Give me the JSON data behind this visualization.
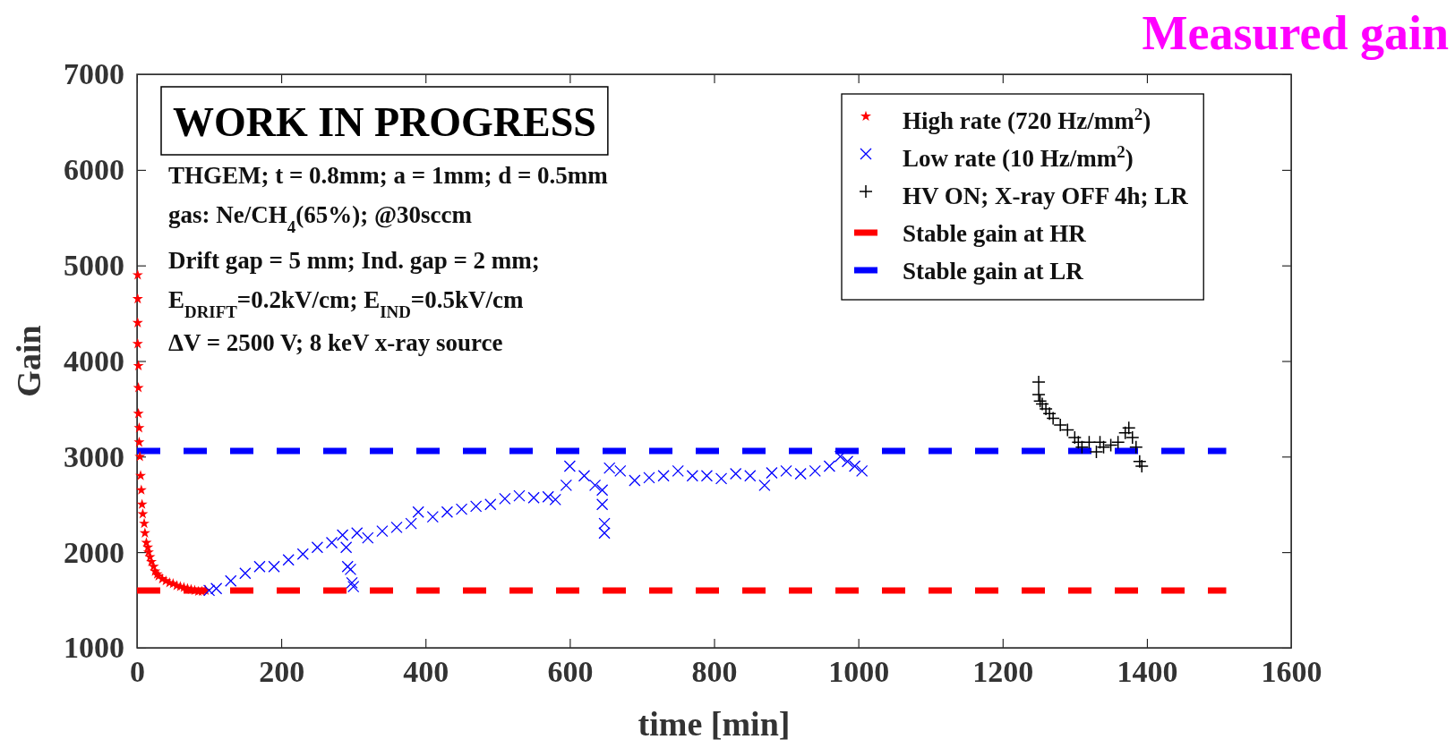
{
  "chart_data": {
    "type": "scatter",
    "title": "Measured gain",
    "xlabel": "time [min]",
    "ylabel": "Gain",
    "xlim": [
      0,
      1600
    ],
    "xticks": [
      0,
      200,
      400,
      600,
      800,
      1000,
      1200,
      1400,
      1600
    ],
    "ylim": [
      1000,
      7000
    ],
    "yticks": [
      1000,
      2000,
      3000,
      4000,
      5000,
      6000,
      7000
    ],
    "grid": false,
    "legend": "top right",
    "annotations": [
      "WORK IN PROGRESS",
      "THGEM; t = 0.8mm; a = 1mm; d = 0.5mm",
      "gas: Ne/CH$_{4}$(65%);  @30sccm",
      "Drift gap = 5 mm; Ind. gap = 2 mm;",
      "E$_{DRIFT}$=0.2kV/cm; E$_{IND}$=0.5kV/cm",
      "ΔV = 2500 V; 8 keV x-ray source"
    ],
    "series": [
      {
        "name": "High rate (720 Hz/mm$^{2}$)",
        "marker": "star",
        "color": "#ff0000",
        "x": [
          1,
          1,
          1,
          1,
          2,
          2,
          2,
          3,
          3,
          4,
          5,
          6,
          7,
          8,
          10,
          11,
          13,
          15,
          16,
          18,
          20,
          23,
          25,
          28,
          30,
          35,
          40,
          45,
          50,
          55,
          60,
          65,
          70,
          75,
          80,
          85,
          90,
          95
        ],
        "values": [
          4900,
          4650,
          4400,
          4180,
          3950,
          3720,
          3450,
          3300,
          3150,
          3000,
          2800,
          2650,
          2500,
          2400,
          2300,
          2200,
          2100,
          2050,
          2000,
          1950,
          1900,
          1850,
          1800,
          1770,
          1750,
          1720,
          1700,
          1680,
          1670,
          1650,
          1640,
          1630,
          1620,
          1610,
          1600,
          1590,
          1590,
          1600
        ]
      },
      {
        "name": "Low rate (10 Hz/mm$^{2}$)",
        "marker": "x",
        "color": "#0000ff",
        "x": [
          100,
          110,
          130,
          150,
          170,
          190,
          210,
          230,
          250,
          270,
          285,
          290,
          292,
          296,
          298,
          300,
          305,
          320,
          340,
          360,
          380,
          390,
          410,
          430,
          450,
          470,
          490,
          510,
          530,
          550,
          570,
          580,
          595,
          600,
          620,
          635,
          645,
          645,
          648,
          648,
          655,
          670,
          690,
          710,
          730,
          750,
          770,
          790,
          810,
          830,
          850,
          870,
          880,
          900,
          920,
          940,
          960,
          975,
          985,
          995,
          1005
        ],
        "values": [
          1600,
          1620,
          1700,
          1780,
          1850,
          1850,
          1920,
          1980,
          2050,
          2100,
          2180,
          2050,
          1850,
          1820,
          1680,
          1640,
          2200,
          2150,
          2220,
          2260,
          2300,
          2420,
          2370,
          2420,
          2450,
          2480,
          2500,
          2560,
          2590,
          2570,
          2580,
          2550,
          2700,
          2900,
          2800,
          2700,
          2650,
          2500,
          2300,
          2200,
          2880,
          2850,
          2750,
          2780,
          2800,
          2850,
          2800,
          2800,
          2770,
          2820,
          2800,
          2700,
          2830,
          2850,
          2820,
          2850,
          2900,
          3000,
          2950,
          2900,
          2850
        ]
      },
      {
        "name": "HV ON; X-ray OFF 4h; LR",
        "marker": "cross",
        "color": "#000000",
        "x": [
          1250,
          1250,
          1252,
          1255,
          1260,
          1265,
          1270,
          1280,
          1290,
          1300,
          1305,
          1310,
          1320,
          1330,
          1335,
          1340,
          1350,
          1360,
          1370,
          1375,
          1380,
          1385,
          1390,
          1393
        ],
        "values": [
          3780,
          3650,
          3580,
          3550,
          3500,
          3450,
          3400,
          3330,
          3280,
          3200,
          3150,
          3100,
          3150,
          3050,
          3150,
          3100,
          3120,
          3150,
          3250,
          3300,
          3200,
          3100,
          2950,
          2900
        ]
      },
      {
        "name": "Stable gain at HR",
        "type": "line",
        "marker": "none",
        "line_style": "dashed",
        "color": "#ff0000",
        "x": [
          0,
          1510
        ],
        "values": [
          1600,
          1600
        ]
      },
      {
        "name": "Stable gain at LR",
        "type": "line",
        "marker": "none",
        "line_style": "dashed",
        "color": "#0000ff",
        "x": [
          0,
          1510
        ],
        "values": [
          3060,
          3060
        ]
      }
    ]
  }
}
